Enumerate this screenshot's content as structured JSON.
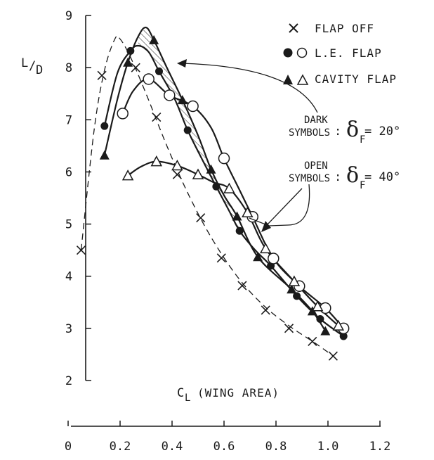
{
  "chart_data": {
    "type": "line",
    "ylabel_main": "L",
    "ylabel_sub": "D",
    "xlabel_main": "C",
    "xlabel_sub": "L",
    "xlabel_rest": "(WING AREA)",
    "xlim": [
      0,
      1.2
    ],
    "ylim": [
      2,
      9
    ],
    "x_ticks": [
      "0",
      "0.2",
      "0.4",
      "0.6",
      "0.8",
      "1.0",
      "1.2"
    ],
    "y_ticks": [
      "2",
      "3",
      "4",
      "5",
      "6",
      "7",
      "8",
      "9"
    ],
    "grid": false,
    "legend": [
      {
        "symbol": "×",
        "label": "FLAP OFF"
      },
      {
        "symbol": "●○",
        "label": "L.E. FLAP"
      },
      {
        "symbol": "▲△",
        "label": "CAVITY FLAP"
      }
    ],
    "annotations": {
      "dark_line1": "DARK",
      "dark_line2": "SYMBOLS",
      "open_line1": "OPEN",
      "open_line2": "SYMBOLS",
      "delta_symbol": "δ",
      "delta_sub": "F",
      "dark_value": ": ",
      "dark_eq": " = 20°",
      "open_eq": " = 40°"
    },
    "series": [
      {
        "name": "FLAP OFF",
        "marker": "x",
        "line": "dashed",
        "points": [
          [
            0.05,
            4.5
          ],
          [
            0.13,
            7.85
          ],
          [
            0.26,
            8.0
          ],
          [
            0.34,
            7.05
          ],
          [
            0.42,
            5.95
          ],
          [
            0.51,
            5.12
          ],
          [
            0.59,
            4.35
          ],
          [
            0.67,
            3.82
          ],
          [
            0.76,
            3.35
          ],
          [
            0.85,
            3.0
          ],
          [
            0.94,
            2.75
          ],
          [
            1.02,
            2.47
          ]
        ],
        "curve": [
          [
            0.05,
            4.5
          ],
          [
            0.1,
            6.8
          ],
          [
            0.14,
            7.95
          ],
          [
            0.18,
            8.55
          ],
          [
            0.2,
            8.55
          ],
          [
            0.24,
            8.2
          ],
          [
            0.3,
            7.5
          ],
          [
            0.38,
            6.5
          ],
          [
            0.46,
            5.6
          ],
          [
            0.55,
            4.75
          ],
          [
            0.65,
            4.0
          ],
          [
            0.75,
            3.45
          ],
          [
            0.85,
            3.05
          ],
          [
            0.95,
            2.72
          ],
          [
            1.02,
            2.47
          ]
        ]
      },
      {
        "name": "L.E. FLAP δF=20°",
        "marker": "filled-circle",
        "line": "solid",
        "points": [
          [
            0.14,
            6.88
          ],
          [
            0.24,
            8.32
          ],
          [
            0.35,
            7.93
          ],
          [
            0.46,
            6.8
          ],
          [
            0.57,
            5.72
          ],
          [
            0.66,
            4.87
          ],
          [
            0.78,
            4.2
          ],
          [
            0.88,
            3.62
          ],
          [
            0.97,
            3.18
          ],
          [
            1.06,
            2.85
          ]
        ],
        "curve": [
          [
            0.14,
            6.88
          ],
          [
            0.19,
            7.9
          ],
          [
            0.24,
            8.32
          ],
          [
            0.27,
            8.42
          ],
          [
            0.31,
            8.3
          ],
          [
            0.35,
            7.93
          ],
          [
            0.41,
            7.4
          ],
          [
            0.46,
            6.8
          ],
          [
            0.52,
            6.2
          ],
          [
            0.57,
            5.72
          ],
          [
            0.62,
            5.25
          ],
          [
            0.66,
            4.87
          ],
          [
            0.72,
            4.5
          ],
          [
            0.78,
            4.2
          ],
          [
            0.88,
            3.62
          ],
          [
            0.97,
            3.18
          ],
          [
            1.06,
            2.85
          ]
        ]
      },
      {
        "name": "L.E. FLAP δF=40°",
        "marker": "open-circle",
        "line": "solid",
        "points": [
          [
            0.21,
            7.12
          ],
          [
            0.31,
            7.78
          ],
          [
            0.39,
            7.47
          ],
          [
            0.48,
            7.26
          ],
          [
            0.6,
            6.26
          ],
          [
            0.71,
            5.14
          ],
          [
            0.79,
            4.34
          ],
          [
            0.89,
            3.81
          ],
          [
            0.99,
            3.39
          ],
          [
            1.06,
            3.0
          ]
        ],
        "curve": [
          [
            0.21,
            7.12
          ],
          [
            0.25,
            7.55
          ],
          [
            0.31,
            7.78
          ],
          [
            0.39,
            7.47
          ],
          [
            0.48,
            7.26
          ],
          [
            0.55,
            6.85
          ],
          [
            0.6,
            6.26
          ],
          [
            0.66,
            5.65
          ],
          [
            0.71,
            5.14
          ],
          [
            0.79,
            4.34
          ],
          [
            0.89,
            3.81
          ],
          [
            0.99,
            3.39
          ],
          [
            1.06,
            3.0
          ]
        ]
      },
      {
        "name": "CAVITY FLAP δF=20°",
        "marker": "filled-triangle",
        "line": "solid",
        "points": [
          [
            0.14,
            6.32
          ],
          [
            0.23,
            8.1
          ],
          [
            0.33,
            8.53
          ],
          [
            0.44,
            7.38
          ],
          [
            0.55,
            6.05
          ],
          [
            0.65,
            5.15
          ],
          [
            0.73,
            4.37
          ],
          [
            0.86,
            3.75
          ],
          [
            0.94,
            3.33
          ],
          [
            0.99,
            2.95
          ]
        ],
        "curve": [
          [
            0.14,
            6.32
          ],
          [
            0.19,
            7.4
          ],
          [
            0.23,
            8.1
          ],
          [
            0.27,
            8.6
          ],
          [
            0.3,
            8.77
          ],
          [
            0.33,
            8.53
          ],
          [
            0.38,
            8.0
          ],
          [
            0.44,
            7.38
          ],
          [
            0.5,
            6.7
          ],
          [
            0.55,
            6.05
          ],
          [
            0.6,
            5.55
          ],
          [
            0.65,
            5.15
          ],
          [
            0.73,
            4.37
          ],
          [
            0.86,
            3.75
          ],
          [
            0.94,
            3.33
          ],
          [
            0.99,
            2.95
          ]
        ]
      },
      {
        "name": "CAVITY FLAP δF=40°",
        "marker": "open-triangle",
        "line": "solid",
        "points": [
          [
            0.23,
            5.93
          ],
          [
            0.34,
            6.2
          ],
          [
            0.42,
            6.12
          ],
          [
            0.5,
            5.95
          ],
          [
            0.62,
            5.68
          ],
          [
            0.69,
            5.22
          ],
          [
            0.76,
            4.53
          ],
          [
            0.87,
            3.9
          ],
          [
            0.96,
            3.42
          ],
          [
            1.04,
            3.05
          ]
        ],
        "curve": [
          [
            0.23,
            5.93
          ],
          [
            0.28,
            6.1
          ],
          [
            0.34,
            6.2
          ],
          [
            0.42,
            6.12
          ],
          [
            0.5,
            5.95
          ],
          [
            0.56,
            5.8
          ],
          [
            0.62,
            5.68
          ],
          [
            0.69,
            5.22
          ],
          [
            0.76,
            4.53
          ],
          [
            0.87,
            3.9
          ],
          [
            0.96,
            3.42
          ],
          [
            1.04,
            3.05
          ]
        ]
      }
    ]
  }
}
